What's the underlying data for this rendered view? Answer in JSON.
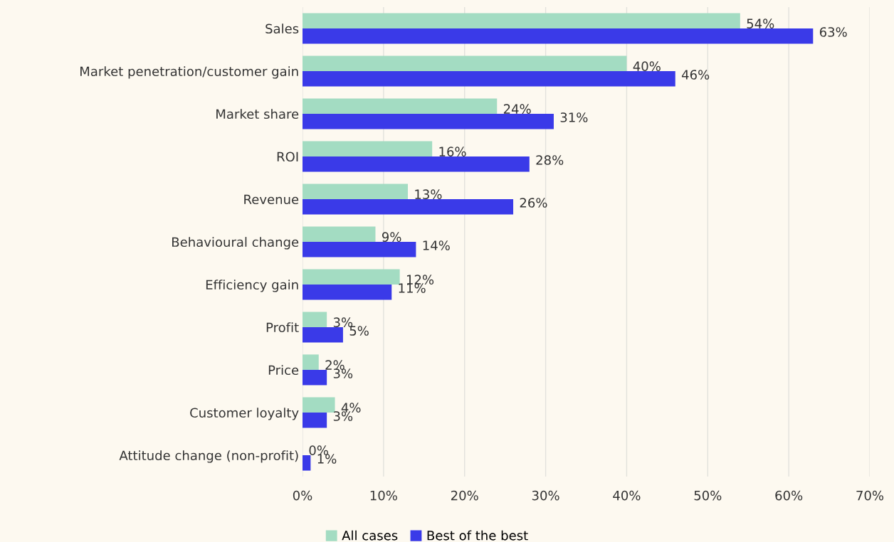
{
  "chart_data": {
    "type": "bar",
    "orientation": "horizontal",
    "categories": [
      "Sales",
      "Market penetration/customer gain",
      "Market share",
      "ROI",
      "Revenue",
      "Behavioural change",
      "Efficiency gain",
      "Profit",
      "Price",
      "Customer loyalty",
      "Attitude change (non-profit)"
    ],
    "series": [
      {
        "name": "All cases",
        "color": "#a3dcc2",
        "values": [
          54,
          40,
          24,
          16,
          13,
          9,
          12,
          3,
          2,
          4,
          0
        ],
        "value_labels": [
          "54%",
          "40%",
          "24%",
          "16%",
          "13%",
          "9%",
          "12%",
          "3%",
          "2%",
          "4%",
          "0%"
        ]
      },
      {
        "name": "Best of the best",
        "color": "#3a3ae8",
        "values": [
          63,
          46,
          31,
          28,
          26,
          14,
          11,
          5,
          3,
          3,
          1
        ],
        "value_labels": [
          "63%",
          "46%",
          "31%",
          "28%",
          "26%",
          "14%",
          "11%",
          "5%",
          "3%",
          "3%",
          "1%"
        ]
      }
    ],
    "xlim": [
      0,
      70
    ],
    "xticks": [
      {
        "value": 0,
        "label": "0%"
      },
      {
        "value": 10,
        "label": "10%"
      },
      {
        "value": 20,
        "label": "20%"
      },
      {
        "value": 30,
        "label": "30%"
      },
      {
        "value": 40,
        "label": "40%"
      },
      {
        "value": 50,
        "label": "50%"
      },
      {
        "value": 60,
        "label": "60%"
      },
      {
        "value": 70,
        "label": "70%"
      }
    ],
    "grid": "x",
    "legend": "bottom"
  }
}
